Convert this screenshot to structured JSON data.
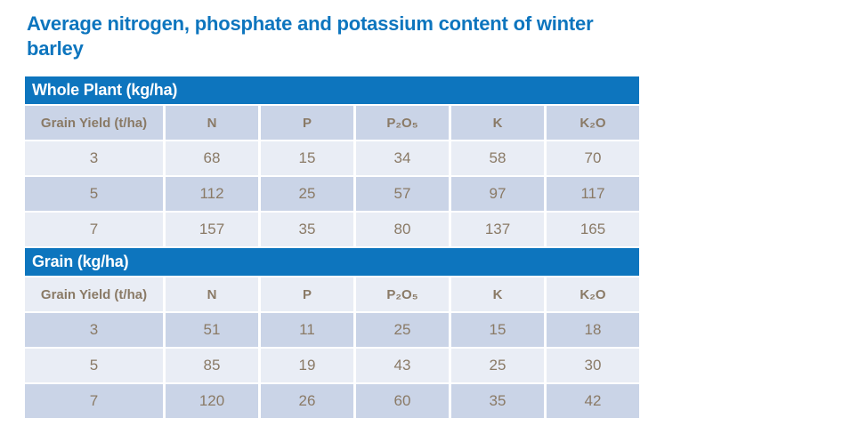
{
  "page": {
    "title": "Average nitrogen, phosphate and potassium content of winter barley"
  },
  "colors": {
    "accent_blue": "#0d75be",
    "row_dark": "#cad4e7",
    "row_light": "#e9edf5",
    "cell_text": "#8a7a66",
    "band_text": "#ffffff",
    "title_text": "#1173bd"
  },
  "chart_data": [
    {
      "type": "table",
      "title": "Whole Plant (kg/ha)",
      "columns": [
        "Grain Yield (t/ha)",
        "N",
        "P",
        "P₂O₅",
        "K",
        "K₂O"
      ],
      "rows": [
        [
          3,
          68,
          15,
          34,
          58,
          70
        ],
        [
          5,
          112,
          25,
          57,
          97,
          117
        ],
        [
          7,
          157,
          35,
          80,
          137,
          165
        ]
      ]
    },
    {
      "type": "table",
      "title": "Grain (kg/ha)",
      "columns": [
        "Grain Yield (t/ha)",
        "N",
        "P",
        "P₂O₅",
        "K",
        "K₂O"
      ],
      "rows": [
        [
          3,
          51,
          11,
          25,
          15,
          18
        ],
        [
          5,
          85,
          19,
          43,
          25,
          30
        ],
        [
          7,
          120,
          26,
          60,
          35,
          42
        ]
      ]
    }
  ]
}
